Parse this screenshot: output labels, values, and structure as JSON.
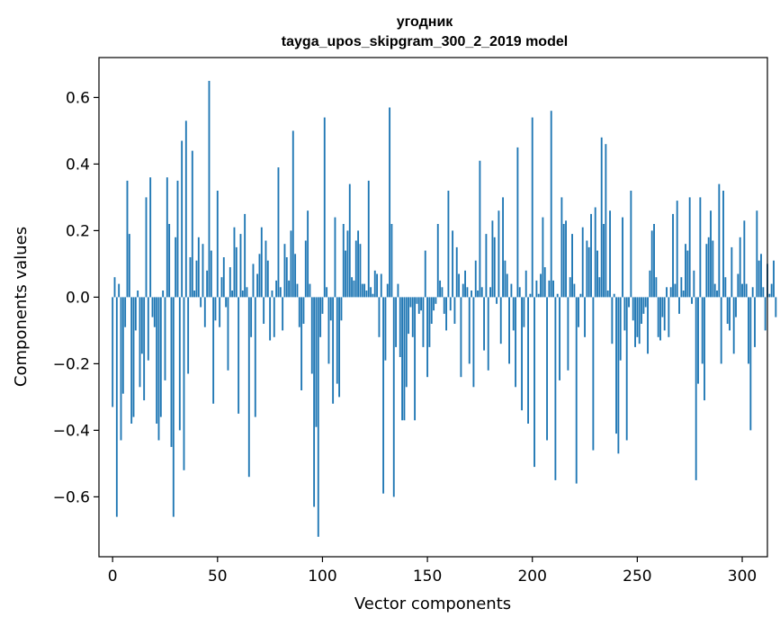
{
  "chart_data": {
    "type": "bar",
    "title": "угодник",
    "subtitle": "tayga_upos_skipgram_300_2_2019 model",
    "xlabel": "Vector components",
    "ylabel": "Components values",
    "xlim": [
      -6.5,
      312
    ],
    "ylim": [
      -0.78,
      0.72
    ],
    "xticks": [
      0,
      50,
      100,
      150,
      200,
      250,
      300
    ],
    "yticks": [
      -0.6,
      -0.4,
      -0.2,
      0.0,
      0.2,
      0.4,
      0.6
    ],
    "ytick_labels": [
      "−0.6",
      "−0.4",
      "−0.2",
      "0.0",
      "0.2",
      "0.4",
      "0.6"
    ],
    "bar_color": "#1f77b4",
    "values": [
      -0.33,
      0.06,
      -0.66,
      0.04,
      -0.43,
      -0.29,
      -0.09,
      0.35,
      0.19,
      -0.38,
      -0.36,
      -0.1,
      0.02,
      -0.27,
      -0.17,
      -0.31,
      0.3,
      -0.19,
      0.36,
      -0.06,
      -0.09,
      -0.38,
      -0.43,
      -0.36,
      0.02,
      -0.25,
      0.36,
      0.22,
      -0.45,
      -0.66,
      0.18,
      0.35,
      -0.4,
      0.47,
      -0.52,
      0.53,
      -0.23,
      0.12,
      0.44,
      0.02,
      0.11,
      0.18,
      -0.03,
      0.16,
      -0.09,
      0.08,
      0.65,
      0.14,
      -0.32,
      -0.07,
      0.32,
      -0.09,
      0.06,
      0.12,
      -0.03,
      -0.22,
      0.09,
      0.02,
      0.21,
      0.15,
      -0.35,
      0.19,
      0.02,
      0.25,
      0.03,
      -0.54,
      -0.12,
      0.1,
      -0.36,
      0.07,
      0.13,
      0.21,
      -0.08,
      0.17,
      0.11,
      -0.13,
      0.02,
      -0.12,
      0.05,
      0.39,
      0.03,
      -0.1,
      0.16,
      0.12,
      0.05,
      0.2,
      0.5,
      0.13,
      0.04,
      -0.09,
      -0.28,
      -0.08,
      0.17,
      0.26,
      0.04,
      -0.23,
      -0.63,
      -0.39,
      -0.72,
      -0.12,
      -0.05,
      0.54,
      0.03,
      -0.2,
      -0.07,
      -0.32,
      0.24,
      -0.26,
      -0.3,
      -0.07,
      0.22,
      0.14,
      0.2,
      0.34,
      0.06,
      0.05,
      0.17,
      0.2,
      0.16,
      0.04,
      0.04,
      0.02,
      0.35,
      0.03,
      0.01,
      0.08,
      0.07,
      -0.12,
      0.07,
      -0.59,
      -0.19,
      0.04,
      0.57,
      0.22,
      -0.6,
      -0.15,
      0.04,
      -0.18,
      -0.37,
      -0.37,
      -0.27,
      -0.11,
      -0.03,
      -0.12,
      -0.37,
      -0.02,
      -0.05,
      -0.04,
      -0.15,
      0.14,
      -0.24,
      -0.15,
      -0.08,
      -0.04,
      -0.02,
      0.22,
      0.05,
      0.03,
      -0.05,
      -0.1,
      0.32,
      -0.04,
      0.2,
      -0.08,
      0.15,
      0.07,
      -0.24,
      0.04,
      0.08,
      0.03,
      -0.2,
      0.02,
      -0.27,
      0.11,
      0.02,
      0.41,
      0.03,
      -0.16,
      0.19,
      -0.22,
      0.03,
      0.23,
      0.18,
      -0.02,
      0.26,
      -0.14,
      0.3,
      0.11,
      0.07,
      -0.2,
      0.04,
      -0.1,
      -0.27,
      0.45,
      0.03,
      -0.34,
      -0.09,
      0.08,
      -0.38,
      0.01,
      0.54,
      -0.51,
      0.05,
      0.01,
      0.07,
      0.24,
      0.09,
      -0.43,
      0.05,
      0.56,
      0.05,
      -0.55,
      0.01,
      -0.25,
      0.3,
      0.22,
      0.23,
      -0.22,
      0.06,
      0.19,
      0.04,
      -0.56,
      -0.09,
      0.01,
      0.21,
      -0.12,
      0.17,
      0.15,
      0.25,
      -0.46,
      0.27,
      0.14,
      0.06,
      0.48,
      0.22,
      0.46,
      0.02,
      0.26,
      -0.14,
      0.01,
      -0.41,
      -0.47,
      -0.19,
      0.24,
      -0.1,
      -0.43,
      -0.03,
      0.32,
      -0.07,
      -0.15,
      -0.12,
      -0.14,
      -0.08,
      -0.05,
      -0.03,
      -0.17,
      0.08,
      0.2,
      0.22,
      0.06,
      -0.12,
      -0.13,
      -0.06,
      -0.1,
      0.03,
      -0.12,
      0.03,
      0.25,
      0.04,
      0.29,
      -0.05,
      0.06,
      0.02,
      0.16,
      0.14,
      0.3,
      -0.02,
      0.08,
      -0.55,
      -0.26,
      0.3,
      -0.2,
      -0.31,
      0.16,
      0.18,
      0.26,
      0.17,
      0.04,
      0.02,
      0.34,
      -0.2,
      0.32,
      0.06,
      -0.08,
      -0.1,
      0.15,
      -0.17,
      -0.06,
      0.07,
      0.18,
      0.04,
      0.23,
      0.04,
      -0.2,
      -0.4,
      0.03,
      -0.15,
      0.26,
      0.11,
      0.13,
      0.03,
      -0.1,
      0.1,
      0.01,
      0.04,
      0.11,
      -0.06
    ]
  }
}
